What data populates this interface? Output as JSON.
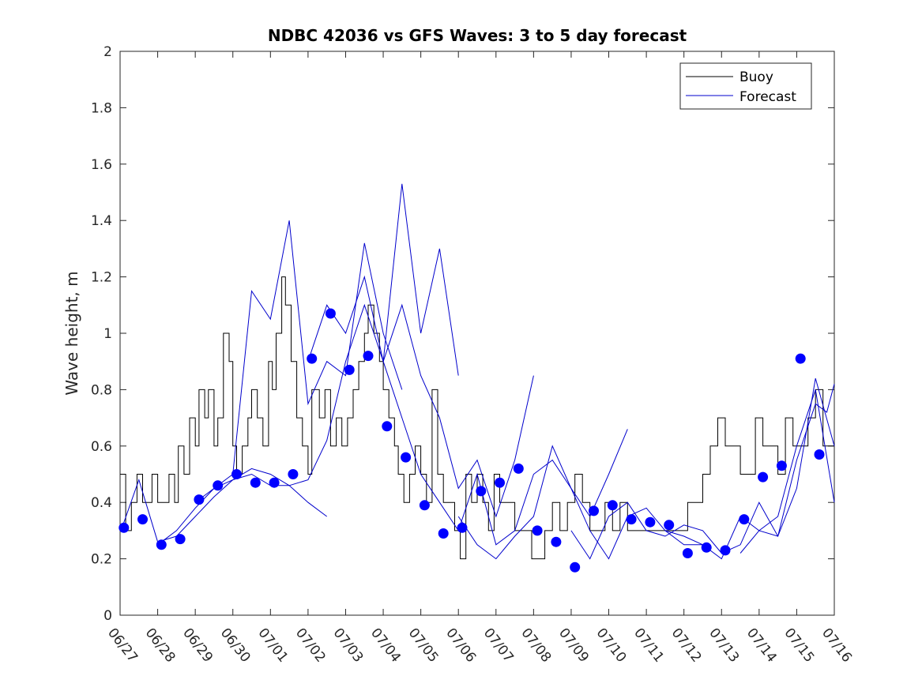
{
  "chart_data": {
    "type": "line",
    "title": "NDBC 42036 vs GFS Waves: 3 to 5 day forecast",
    "xlabel": "",
    "ylabel": "Wave height, m",
    "ylim": [
      0,
      2
    ],
    "yticks": [
      "0",
      "0.2",
      "0.4",
      "0.6",
      "0.8",
      "1",
      "1.2",
      "1.4",
      "1.6",
      "1.8",
      "2"
    ],
    "xlim_days": [
      0,
      19
    ],
    "xtick_labels": [
      "06/27",
      "06/28",
      "06/29",
      "06/30",
      "07/01",
      "07/02",
      "07/03",
      "07/04",
      "07/05",
      "07/06",
      "07/07",
      "07/08",
      "07/09",
      "07/10",
      "07/11",
      "07/12",
      "07/13",
      "07/14",
      "07/15",
      "07/16"
    ],
    "grid": false,
    "legend": {
      "position": "top-right",
      "entries": [
        {
          "label": "Buoy",
          "color": "#000000"
        },
        {
          "label": "Forecast",
          "color": "#0000cc"
        }
      ]
    },
    "series": [
      {
        "name": "Buoy",
        "color": "#000000",
        "x": [
          0,
          0.15,
          0.3,
          0.45,
          0.6,
          0.75,
          0.85,
          1.0,
          1.15,
          1.3,
          1.45,
          1.55,
          1.7,
          1.85,
          2.0,
          2.1,
          2.25,
          2.35,
          2.5,
          2.6,
          2.75,
          2.9,
          3.0,
          3.1,
          3.25,
          3.4,
          3.5,
          3.65,
          3.8,
          3.95,
          4.05,
          4.15,
          4.3,
          4.4,
          4.55,
          4.7,
          4.85,
          5.0,
          5.1,
          5.3,
          5.45,
          5.6,
          5.75,
          5.9,
          6.05,
          6.2,
          6.35,
          6.5,
          6.6,
          6.75,
          6.9,
          7.0,
          7.15,
          7.3,
          7.4,
          7.55,
          7.7,
          7.85,
          8.0,
          8.15,
          8.3,
          8.45,
          8.6,
          8.75,
          8.9,
          9.05,
          9.2,
          9.35,
          9.5,
          9.65,
          9.8,
          9.95,
          10.1,
          10.3,
          10.5,
          10.65,
          10.8,
          10.95,
          11.1,
          11.3,
          11.5,
          11.7,
          11.9,
          12.1,
          12.3,
          12.5,
          12.7,
          12.9,
          13.1,
          13.3,
          13.5,
          13.7,
          13.9,
          14.1,
          14.3,
          14.5,
          14.7,
          14.9,
          15.1,
          15.3,
          15.5,
          15.7,
          15.9,
          16.1,
          16.3,
          16.5,
          16.7,
          16.9,
          17.1,
          17.3,
          17.5,
          17.7,
          17.9,
          18.1,
          18.3,
          18.5,
          18.7,
          18.85,
          19.0
        ],
        "values": [
          0.5,
          0.3,
          0.4,
          0.5,
          0.4,
          0.4,
          0.5,
          0.4,
          0.4,
          0.5,
          0.4,
          0.6,
          0.5,
          0.7,
          0.6,
          0.8,
          0.7,
          0.8,
          0.6,
          0.7,
          1.0,
          0.9,
          0.6,
          0.5,
          0.6,
          0.7,
          0.8,
          0.7,
          0.6,
          0.9,
          0.8,
          1.0,
          1.2,
          1.1,
          0.9,
          0.7,
          0.6,
          0.5,
          0.8,
          0.7,
          0.8,
          0.6,
          0.7,
          0.6,
          0.7,
          0.8,
          0.9,
          1.0,
          1.1,
          1.0,
          0.9,
          0.8,
          0.7,
          0.6,
          0.5,
          0.4,
          0.5,
          0.6,
          0.5,
          0.4,
          0.8,
          0.5,
          0.4,
          0.4,
          0.3,
          0.2,
          0.5,
          0.4,
          0.5,
          0.4,
          0.3,
          0.5,
          0.4,
          0.4,
          0.3,
          0.3,
          0.3,
          0.2,
          0.2,
          0.3,
          0.4,
          0.3,
          0.4,
          0.5,
          0.4,
          0.3,
          0.3,
          0.4,
          0.3,
          0.4,
          0.3,
          0.3,
          0.3,
          0.3,
          0.3,
          0.3,
          0.3,
          0.3,
          0.4,
          0.4,
          0.5,
          0.6,
          0.7,
          0.6,
          0.6,
          0.5,
          0.5,
          0.7,
          0.6,
          0.6,
          0.5,
          0.7,
          0.6,
          0.6,
          0.7,
          0.8,
          0.6,
          0.6,
          0.6
        ]
      },
      {
        "name": "Forecast",
        "color": "#0000cc",
        "x": [
          0.05,
          0.5,
          1.0,
          1.5,
          2.0,
          2.5,
          3.0,
          3.5,
          4.0,
          4.5,
          5.0,
          5.5
        ],
        "values": [
          0.31,
          0.48,
          0.26,
          0.28,
          0.35,
          0.42,
          0.48,
          0.52,
          0.5,
          0.46,
          0.4,
          0.35
        ]
      },
      {
        "name": "",
        "color": "#0000cc",
        "x": [
          1.0,
          1.5,
          2.0,
          2.5,
          3.0,
          3.5,
          4.0,
          4.5,
          5.0,
          5.5,
          6.0,
          6.5,
          7.0,
          7.5
        ],
        "values": [
          0.25,
          0.3,
          0.38,
          0.45,
          0.5,
          1.15,
          1.05,
          1.4,
          0.75,
          0.9,
          0.85,
          1.32,
          1.0,
          0.8
        ]
      },
      {
        "name": "",
        "color": "#0000cc",
        "x": [
          2.0,
          2.5,
          3.0,
          3.5,
          4.0,
          4.5,
          5.0,
          5.5,
          6.0,
          6.5,
          7.0,
          7.5,
          8.0,
          8.5,
          9.0
        ],
        "values": [
          0.4,
          0.45,
          0.48,
          0.5,
          0.46,
          0.46,
          0.48,
          0.62,
          0.9,
          1.1,
          0.9,
          1.53,
          1.0,
          1.3,
          0.85
        ]
      },
      {
        "name": "",
        "color": "#0000cc",
        "x": [
          5.0,
          5.5,
          6.0,
          6.5,
          7.0,
          7.5,
          8.0,
          8.5,
          9.0,
          9.5,
          10.0,
          10.5,
          11.0
        ],
        "values": [
          0.9,
          1.1,
          1.0,
          1.2,
          0.9,
          1.1,
          0.85,
          0.7,
          0.45,
          0.55,
          0.35,
          0.55,
          0.85
        ]
      },
      {
        "name": "",
        "color": "#0000cc",
        "x": [
          7.0,
          7.5,
          8.0,
          8.5,
          9.0,
          9.5,
          10.0,
          10.5,
          11.0,
          11.5,
          12.0,
          12.5,
          13.0,
          13.5
        ],
        "values": [
          0.9,
          0.7,
          0.5,
          0.4,
          0.3,
          0.5,
          0.25,
          0.3,
          0.5,
          0.55,
          0.45,
          0.35,
          0.5,
          0.66
        ]
      },
      {
        "name": "",
        "color": "#0000cc",
        "x": [
          9.0,
          9.5,
          10.0,
          10.5,
          11.0,
          11.5,
          12.0,
          12.5,
          13.0,
          13.5,
          14.0,
          14.5,
          15.0,
          15.5
        ],
        "values": [
          0.35,
          0.25,
          0.2,
          0.28,
          0.35,
          0.6,
          0.45,
          0.3,
          0.2,
          0.35,
          0.38,
          0.3,
          0.25,
          0.25
        ]
      },
      {
        "name": "",
        "color": "#0000cc",
        "x": [
          12.0,
          12.5,
          13.0,
          13.5,
          14.0,
          14.5,
          15.0,
          15.5,
          16.0,
          16.5,
          17.0,
          17.5,
          18.0,
          18.5,
          19.0
        ],
        "values": [
          0.3,
          0.2,
          0.35,
          0.4,
          0.3,
          0.28,
          0.32,
          0.3,
          0.22,
          0.25,
          0.4,
          0.28,
          0.45,
          0.84,
          0.6
        ]
      },
      {
        "name": "",
        "color": "#0000cc",
        "x": [
          14.5,
          15.0,
          15.5,
          16.0,
          16.5,
          17.0,
          17.5,
          18.0,
          18.5,
          19.0
        ],
        "values": [
          0.3,
          0.28,
          0.25,
          0.2,
          0.35,
          0.3,
          0.35,
          0.6,
          0.8,
          0.4
        ]
      },
      {
        "name": "",
        "color": "#0000cc",
        "x": [
          16.5,
          17.0,
          17.5,
          18.0,
          18.5,
          18.8,
          19.0
        ],
        "values": [
          0.22,
          0.3,
          0.28,
          0.55,
          0.75,
          0.72,
          0.82
        ]
      }
    ],
    "forecast_points": {
      "color": "#0000ff",
      "x": [
        0.1,
        0.6,
        1.1,
        1.6,
        2.1,
        2.6,
        3.1,
        3.6,
        4.1,
        4.6,
        5.1,
        5.6,
        6.1,
        6.6,
        7.1,
        7.6,
        8.1,
        8.6,
        9.1,
        9.6,
        10.1,
        10.6,
        11.1,
        11.6,
        12.1,
        12.6,
        13.1,
        13.6,
        14.1,
        14.6,
        15.1,
        15.6,
        16.1,
        16.6,
        17.1,
        17.6,
        18.1,
        18.6
      ],
      "values": [
        0.31,
        0.34,
        0.25,
        0.27,
        0.41,
        0.46,
        0.5,
        0.47,
        0.47,
        0.5,
        0.91,
        1.07,
        0.87,
        0.92,
        0.67,
        0.56,
        0.39,
        0.29,
        0.31,
        0.44,
        0.47,
        0.52,
        0.3,
        0.26,
        0.17,
        0.37,
        0.39,
        0.34,
        0.33,
        0.32,
        0.22,
        0.24,
        0.23,
        0.34,
        0.49,
        0.53,
        0.91,
        0.57
      ]
    }
  }
}
